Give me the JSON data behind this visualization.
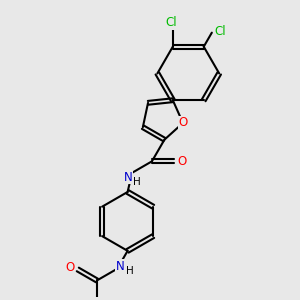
{
  "bg_color": "#e8e8e8",
  "line_color": "#000000",
  "bond_width": 1.5,
  "atom_colors": {
    "O": "#ff0000",
    "N": "#0000cd",
    "Cl": "#00bb00",
    "C": "#000000"
  },
  "font_size": 8.5
}
